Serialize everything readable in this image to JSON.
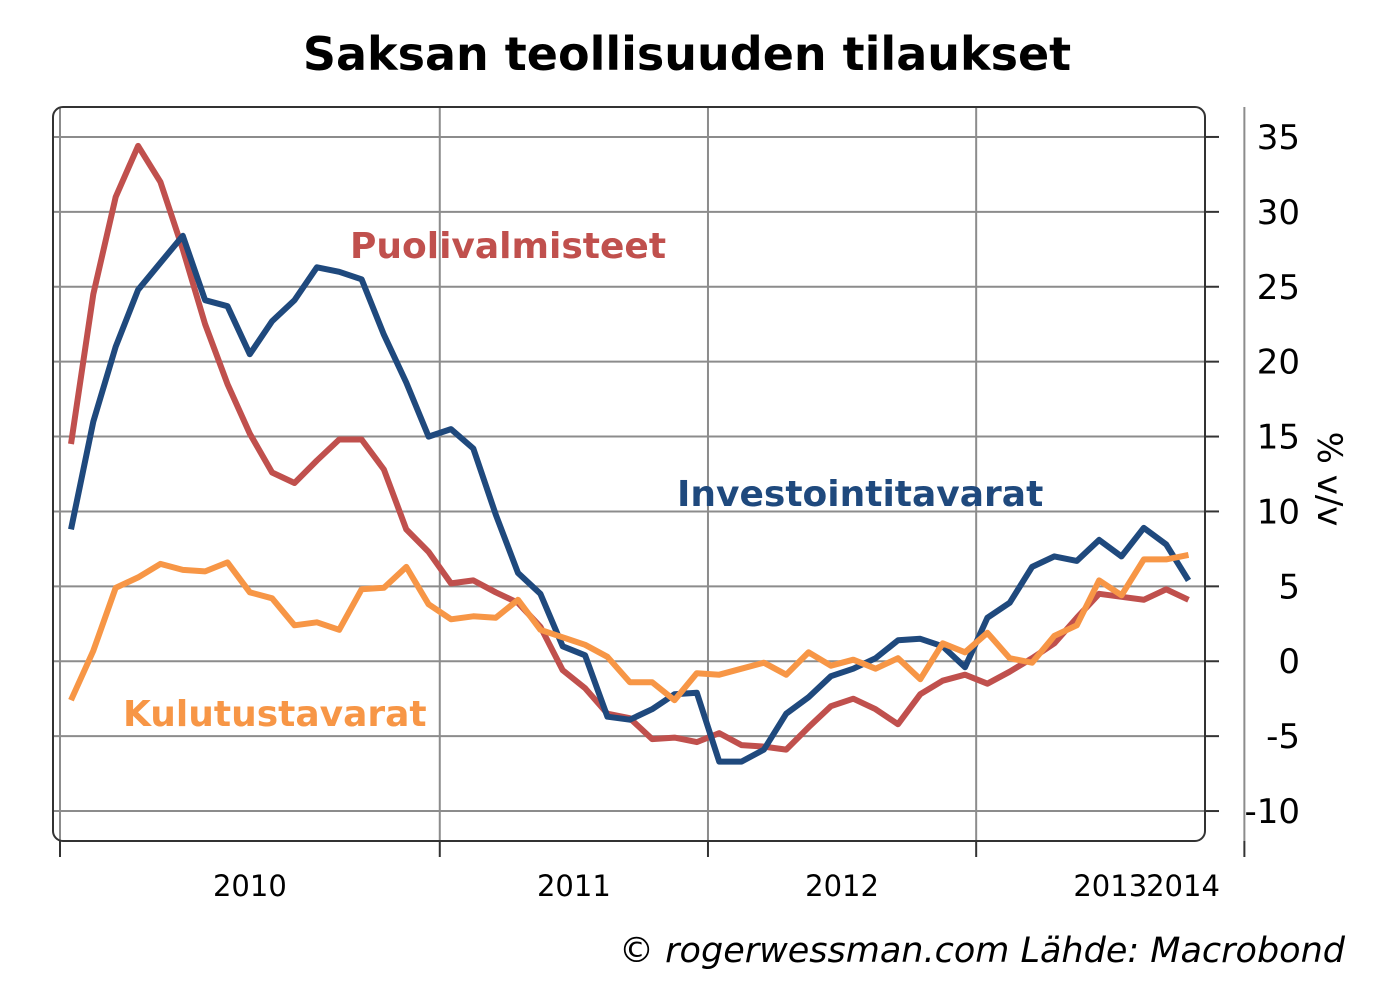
{
  "chart_data": {
    "type": "line",
    "title": "Saksan teollisuuden tilaukset",
    "ylabel": "% v/v",
    "source": "© rogerwessman.com Lähde: Macrobond",
    "ylim": [
      -12,
      37
    ],
    "yticks": [
      -10,
      -5,
      0,
      5,
      10,
      15,
      20,
      25,
      30,
      35
    ],
    "ytick_labels": [
      "-10",
      "-5",
      "0",
      "5",
      "10",
      "15",
      "20",
      "25",
      "30",
      "35"
    ],
    "xticks": [
      "2010",
      "2011",
      "2012",
      "2013",
      "2014"
    ],
    "x_start": "2009-08",
    "grid": true,
    "legend": "inline labels",
    "series": [
      {
        "name": "Puolivalmisteet",
        "color": "#c0504d",
        "values": [
          14.5,
          24.5,
          31,
          34.4,
          32,
          27.5,
          22.5,
          18.5,
          15.2,
          12.6,
          11.9,
          13.4,
          14.8,
          14.8,
          12.8,
          8.8,
          7.3,
          5.2,
          5.4,
          4.6,
          3.9,
          2.3,
          -0.6,
          -1.8,
          -3.5,
          -3.8,
          -5.2,
          -5.1,
          -5.4,
          -4.8,
          -5.6,
          -5.7,
          -5.9,
          -4.4,
          -3,
          -2.5,
          -3.2,
          -4.2,
          -2.2,
          -1.3,
          -0.9,
          -1.5,
          -0.7,
          0.2,
          1.2,
          2.9,
          4.5,
          4.3,
          4.1,
          4.8,
          4.1
        ]
      },
      {
        "name": "Investointitavarat",
        "color": "#1f497d",
        "values": [
          8.8,
          16,
          21,
          24.8,
          26.6,
          28.4,
          24.1,
          23.7,
          20.5,
          22.7,
          24.1,
          26.3,
          26,
          25.5,
          21.8,
          18.6,
          15,
          15.5,
          14.2,
          9.8,
          5.9,
          4.5,
          1,
          0.4,
          -3.7,
          -3.9,
          -3.2,
          -2.2,
          -2.1,
          -6.7,
          -6.7,
          -5.9,
          -3.5,
          -2.4,
          -1,
          -0.5,
          0.2,
          1.4,
          1.5,
          1,
          -0.4,
          2.9,
          3.9,
          6.3,
          7,
          6.7,
          8.1,
          7,
          8.9,
          7.8,
          5.4
        ]
      },
      {
        "name": "Kulutustavarat",
        "color": "#f79646",
        "values": [
          -2.6,
          0.7,
          4.9,
          5.6,
          6.5,
          6.1,
          6,
          6.6,
          4.6,
          4.2,
          2.4,
          2.6,
          2.1,
          4.8,
          4.9,
          6.3,
          3.8,
          2.8,
          3,
          2.9,
          4.1,
          2.1,
          1.6,
          1.1,
          0.3,
          -1.4,
          -1.4,
          -2.6,
          -0.8,
          -0.9,
          -0.5,
          -0.1,
          -0.9,
          0.6,
          -0.3,
          0.1,
          -0.5,
          0.2,
          -1.2,
          1.2,
          0.6,
          1.9,
          0.2,
          -0.1,
          1.7,
          2.4,
          5.4,
          4.4,
          6.8,
          6.8,
          7.1
        ]
      }
    ],
    "annotations": [
      {
        "text": "Puolivalmisteet",
        "color": "#c0504d"
      },
      {
        "text": "Investointitavarat",
        "color": "#1f497d"
      },
      {
        "text": "Kulutustavarat",
        "color": "#f79646"
      }
    ]
  }
}
